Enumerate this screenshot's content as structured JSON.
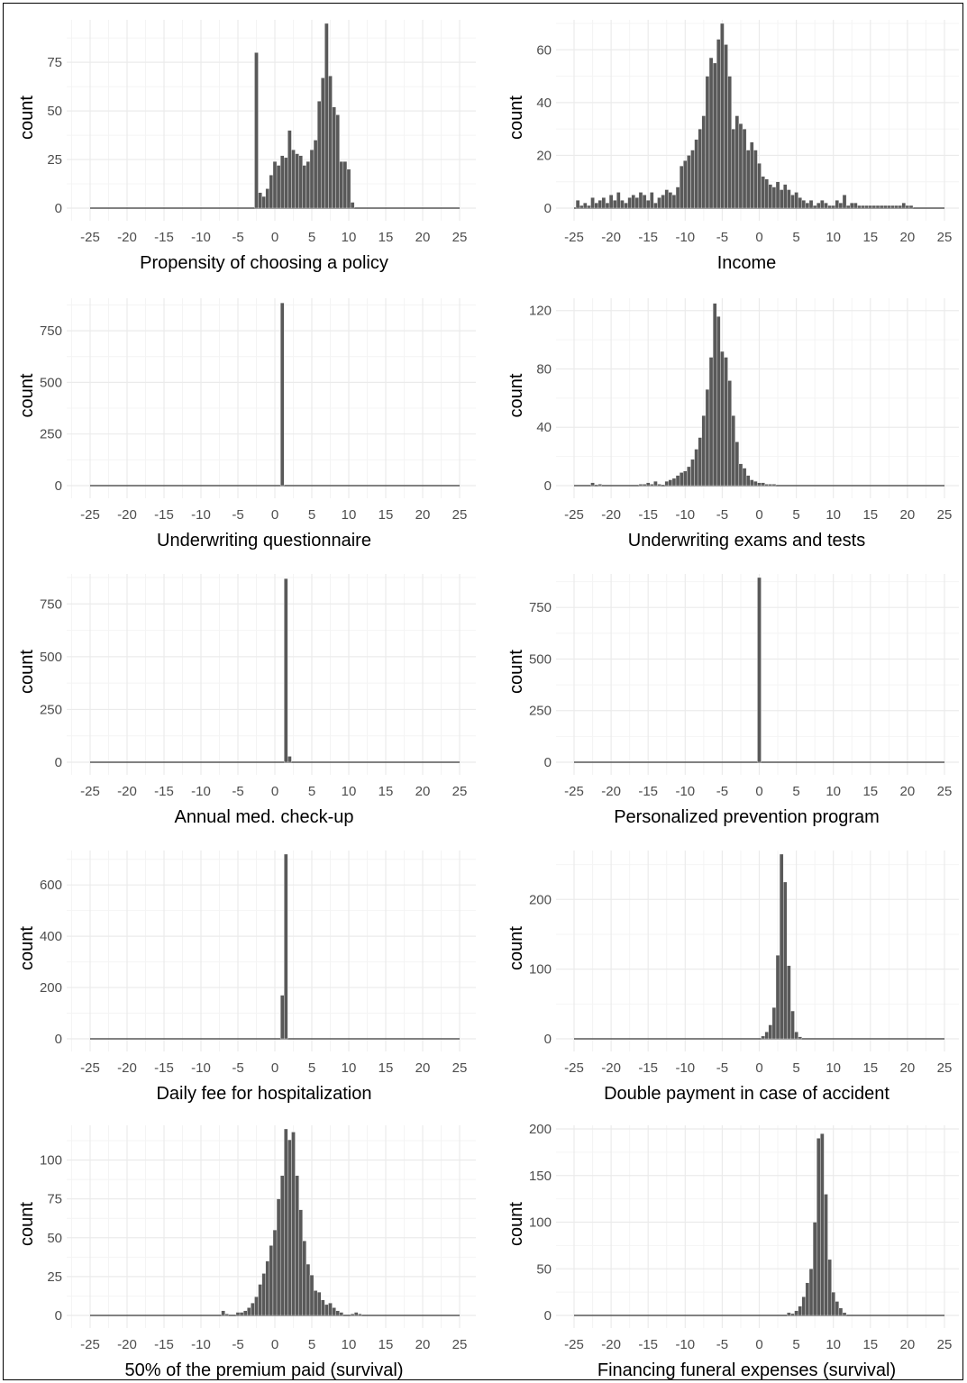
{
  "colors": {
    "bar": "#595959",
    "grid_major": "#ebebeb",
    "grid_minor": "#f4f4f4",
    "tick_text": "#4d4d4d",
    "frame": "#000000"
  },
  "chart_data": [
    {
      "type": "bar",
      "xlabel": "Propensity of choosing a policy",
      "ylabel": "count",
      "xlim": [
        -25,
        25
      ],
      "ylim": [
        0,
        95
      ],
      "xticks": [
        "-25",
        "-20",
        "-15",
        "-10",
        "-5",
        "0",
        "5",
        "10",
        "15",
        "20",
        "25"
      ],
      "yticks": [
        "0",
        "25",
        "50",
        "75"
      ],
      "bin_width": 0.5,
      "x": [
        -2.5,
        -2,
        -1.5,
        -1,
        -0.5,
        0,
        0.5,
        1,
        1.5,
        2,
        2.5,
        3,
        3.5,
        4,
        4.5,
        5,
        5.5,
        6,
        6.5,
        7,
        7.5,
        8,
        8.5,
        9,
        9.5,
        10,
        10.5
      ],
      "values": [
        80,
        8,
        6,
        10,
        17,
        24,
        22,
        27,
        26,
        40,
        30,
        28,
        27,
        22,
        24,
        30,
        35,
        55,
        67,
        95,
        68,
        52,
        48,
        24,
        24,
        20,
        3
      ]
    },
    {
      "type": "bar",
      "xlabel": "Income",
      "ylabel": "count",
      "xlim": [
        -25,
        25
      ],
      "ylim": [
        0,
        70
      ],
      "xticks": [
        "-25",
        "-20",
        "-15",
        "-10",
        "-5",
        "0",
        "5",
        "10",
        "15",
        "20",
        "25"
      ],
      "yticks": [
        "0",
        "20",
        "40",
        "60"
      ],
      "bin_width": 0.5,
      "x": [
        -24.5,
        -24,
        -23.5,
        -23,
        -22.5,
        -22,
        -21.5,
        -21,
        -20.5,
        -20,
        -19.5,
        -19,
        -18.5,
        -18,
        -17.5,
        -17,
        -16.5,
        -16,
        -15.5,
        -15,
        -14.5,
        -14,
        -13.5,
        -13,
        -12.5,
        -12,
        -11.5,
        -11,
        -10.5,
        -10,
        -9.5,
        -9,
        -8.5,
        -8,
        -7.5,
        -7,
        -6.5,
        -6,
        -5.5,
        -5,
        -4.5,
        -4,
        -3.5,
        -3,
        -2.5,
        -2,
        -1.5,
        -1,
        -0.5,
        0,
        0.5,
        1,
        1.5,
        2,
        2.5,
        3,
        3.5,
        4,
        4.5,
        5,
        5.5,
        6,
        6.5,
        7,
        7.5,
        8,
        8.5,
        9,
        9.5,
        10,
        10.5,
        11,
        11.5,
        12,
        12.5,
        13,
        13.5,
        14,
        14.5,
        15,
        15.5,
        16,
        16.5,
        17,
        17.5,
        18,
        18.5,
        19,
        19.5,
        20,
        20.5
      ],
      "values": [
        3,
        1,
        2,
        1,
        4,
        2,
        3,
        4,
        2,
        5,
        3,
        6,
        3,
        2,
        4,
        5,
        4,
        6,
        5,
        3,
        6,
        2,
        4,
        5,
        7,
        6,
        5,
        8,
        16,
        18,
        20,
        22,
        26,
        30,
        35,
        50,
        57,
        55,
        64,
        70,
        62,
        50,
        30,
        35,
        32,
        30,
        22,
        25,
        22,
        17,
        12,
        11,
        9,
        8,
        10,
        7,
        9,
        7,
        5,
        6,
        4,
        3,
        2,
        3,
        1,
        2,
        3,
        2,
        1,
        1,
        3,
        2,
        5,
        1,
        2,
        2,
        1,
        1,
        1,
        1,
        1,
        1,
        1,
        1,
        1,
        1,
        1,
        1,
        2,
        1,
        1
      ]
    },
    {
      "type": "bar",
      "xlabel": "Underwriting questionnaire",
      "ylabel": "count",
      "xlim": [
        -25,
        25
      ],
      "ylim": [
        0,
        890
      ],
      "xticks": [
        "-25",
        "-20",
        "-15",
        "-10",
        "-5",
        "0",
        "5",
        "10",
        "15",
        "20",
        "25"
      ],
      "yticks": [
        "0",
        "250",
        "500",
        "750"
      ],
      "bin_width": 0.5,
      "x": [
        1
      ],
      "values": [
        885
      ]
    },
    {
      "type": "bar",
      "xlabel": "Underwriting exams and tests",
      "ylabel": "count",
      "xlim": [
        -25,
        25
      ],
      "ylim": [
        0,
        126
      ],
      "xticks": [
        "-25",
        "-20",
        "-15",
        "-10",
        "-5",
        "0",
        "5",
        "10",
        "15",
        "20",
        "25"
      ],
      "yticks": [
        "0",
        "40",
        "80",
        "120"
      ],
      "bin_width": 0.5,
      "x": [
        -22.5,
        -21.5,
        -16,
        -15.5,
        -15,
        -14.5,
        -14,
        -13.5,
        -12.5,
        -12,
        -11.5,
        -11,
        -10.5,
        -10,
        -9.5,
        -9,
        -8.5,
        -8,
        -7.5,
        -7,
        -6.5,
        -6,
        -5.5,
        -5,
        -4.5,
        -4,
        -3.5,
        -3,
        -2.5,
        -2,
        -1.5,
        -1,
        -0.5,
        0,
        0.5,
        1,
        1.5,
        2
      ],
      "values": [
        2,
        1,
        1,
        1,
        2,
        1,
        3,
        1,
        3,
        4,
        5,
        7,
        9,
        10,
        13,
        18,
        25,
        33,
        48,
        66,
        88,
        125,
        116,
        92,
        88,
        72,
        48,
        30,
        15,
        12,
        7,
        4,
        3,
        2,
        2,
        1,
        1,
        1
      ]
    },
    {
      "type": "bar",
      "xlabel": "Annual med. check-up",
      "ylabel": "count",
      "xlim": [
        -25,
        25
      ],
      "ylim": [
        0,
        875
      ],
      "xticks": [
        "-25",
        "-20",
        "-15",
        "-10",
        "-5",
        "0",
        "5",
        "10",
        "15",
        "20",
        "25"
      ],
      "yticks": [
        "0",
        "250",
        "500",
        "750"
      ],
      "bin_width": 0.5,
      "x": [
        1.5,
        2
      ],
      "values": [
        870,
        28
      ]
    },
    {
      "type": "bar",
      "xlabel": "Personalized prevention program",
      "ylabel": "count",
      "xlim": [
        -25,
        25
      ],
      "ylim": [
        0,
        895
      ],
      "xticks": [
        "-25",
        "-20",
        "-15",
        "-10",
        "-5",
        "0",
        "5",
        "10",
        "15",
        "20",
        "25"
      ],
      "yticks": [
        "0",
        "250",
        "500",
        "750"
      ],
      "bin_width": 0.5,
      "x": [
        0
      ],
      "values": [
        895
      ]
    },
    {
      "type": "bar",
      "xlabel": "Daily fee for hospitalization",
      "ylabel": "count",
      "xlim": [
        -25,
        25
      ],
      "ylim": [
        0,
        720
      ],
      "xticks": [
        "-25",
        "-20",
        "-15",
        "-10",
        "-5",
        "0",
        "5",
        "10",
        "15",
        "20",
        "25"
      ],
      "yticks": [
        "0",
        "200",
        "400",
        "600"
      ],
      "bin_width": 0.5,
      "x": [
        1,
        1.5
      ],
      "values": [
        170,
        720
      ]
    },
    {
      "type": "bar",
      "xlabel": "Double payment in case of accident",
      "ylabel": "count",
      "xlim": [
        -25,
        25
      ],
      "ylim": [
        0,
        265
      ],
      "xticks": [
        "-25",
        "-20",
        "-15",
        "-10",
        "-5",
        "0",
        "5",
        "10",
        "15",
        "20",
        "25"
      ],
      "yticks": [
        "0",
        "100",
        "200"
      ],
      "bin_width": 0.5,
      "x": [
        0.5,
        1,
        1.5,
        2,
        2.5,
        3,
        3.5,
        4,
        4.5,
        5,
        5.5
      ],
      "values": [
        4,
        10,
        20,
        45,
        120,
        265,
        225,
        105,
        40,
        10,
        3
      ]
    },
    {
      "type": "bar",
      "xlabel": "50% of the premium paid (survival)",
      "ylabel": "count",
      "xlim": [
        -25,
        25
      ],
      "ylim": [
        0,
        120
      ],
      "xticks": [
        "-25",
        "-20",
        "-15",
        "-10",
        "-5",
        "0",
        "5",
        "10",
        "15",
        "20",
        "25"
      ],
      "yticks": [
        "0",
        "25",
        "50",
        "75",
        "100"
      ],
      "bin_width": 0.5,
      "x": [
        -7,
        -6.5,
        -5,
        -4.5,
        -4,
        -3.5,
        -3,
        -2.5,
        -2,
        -1.5,
        -1,
        -0.5,
        0,
        0.5,
        1,
        1.5,
        2,
        2.5,
        3,
        3.5,
        4,
        4.5,
        5,
        5.5,
        6,
        6.5,
        7,
        7.5,
        8,
        8.5,
        9,
        10.5,
        11,
        11.5
      ],
      "values": [
        3,
        1,
        2,
        2,
        3,
        5,
        8,
        12,
        20,
        27,
        35,
        45,
        55,
        75,
        90,
        120,
        113,
        118,
        90,
        68,
        48,
        33,
        26,
        16,
        15,
        10,
        7,
        8,
        5,
        3,
        2,
        1,
        2,
        1
      ]
    },
    {
      "type": "bar",
      "xlabel": "Financing funeral expenses (survival)",
      "ylabel": "count",
      "xlim": [
        -25,
        25
      ],
      "ylim": [
        0,
        200
      ],
      "xticks": [
        "-25",
        "-20",
        "-15",
        "-10",
        "-5",
        "0",
        "5",
        "10",
        "15",
        "20",
        "25"
      ],
      "yticks": [
        "0",
        "50",
        "100",
        "150",
        "200"
      ],
      "bin_width": 0.5,
      "x": [
        4,
        4.5,
        5,
        5.5,
        6,
        6.5,
        7,
        7.5,
        8,
        8.5,
        9,
        9.5,
        10,
        10.5,
        11,
        11.5
      ],
      "values": [
        3,
        2,
        5,
        10,
        20,
        35,
        50,
        100,
        190,
        195,
        130,
        60,
        25,
        15,
        8,
        3
      ]
    }
  ]
}
